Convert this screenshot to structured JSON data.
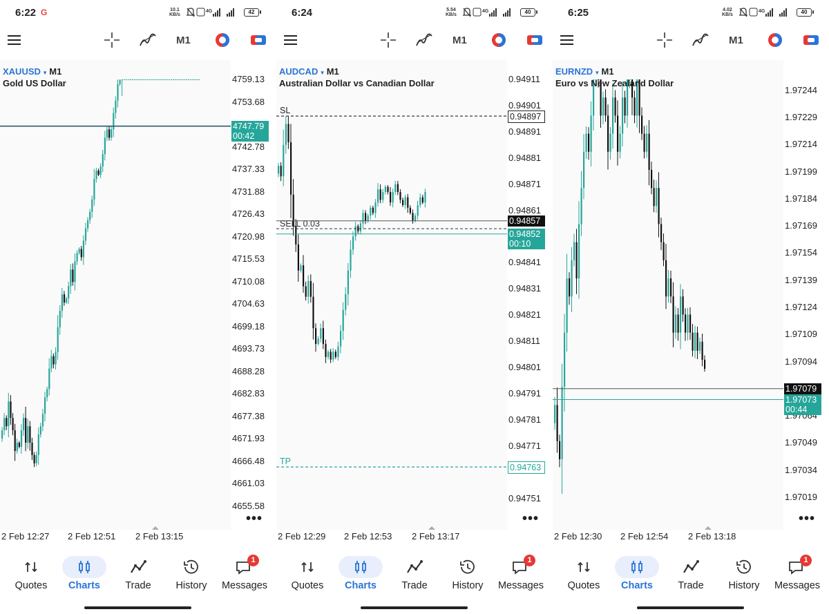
{
  "panels": [
    {
      "status": {
        "time": "6:22",
        "g_logo": "G",
        "speed_top": "10.1",
        "speed_unit": "KB/s",
        "battery": "42"
      },
      "toolbar": {
        "timeframe": "M1"
      },
      "symbol": "XAUUSD",
      "symbol_tf": "M1",
      "description": "Gold US Dollar",
      "price_ticks": [
        "4759.13",
        "4753.68",
        "4742.78",
        "4737.33",
        "4731.88",
        "4726.43",
        "4720.98",
        "4715.53",
        "4710.08",
        "4704.63",
        "4699.18",
        "4693.73",
        "4688.28",
        "4682.83",
        "4677.38",
        "4671.93",
        "4666.48",
        "4661.03",
        "4655.58"
      ],
      "price_min": 4655.58,
      "price_max": 4759.13,
      "bid": {
        "price": "4747.79",
        "timer": "00:42",
        "value": 4747.79
      },
      "x_labels": [
        "2 Feb 12:27",
        "2 Feb 12:51",
        "2 Feb 13:15"
      ],
      "more": "•••",
      "nav_active": "Charts"
    },
    {
      "status": {
        "time": "6:24",
        "speed_top": "5.54",
        "speed_unit": "KB/s",
        "battery": "40"
      },
      "toolbar": {
        "timeframe": "M1"
      },
      "symbol": "AUDCAD",
      "symbol_tf": "M1",
      "description": "Australian Dollar vs Canadian Dollar",
      "price_ticks": [
        "0.94911",
        "0.94901",
        "0.94891",
        "0.94881",
        "0.94871",
        "0.94861",
        "0.94841",
        "0.94831",
        "0.94821",
        "0.94811",
        "0.94801",
        "0.94791",
        "0.94781",
        "0.94771",
        "0.94751"
      ],
      "price_min": 0.94748,
      "price_max": 0.94911,
      "sl": {
        "label": "SL",
        "price": "0.94897",
        "value": 0.94897
      },
      "tp": {
        "label": "TP",
        "price": "0.94763",
        "value": 0.94763
      },
      "sell": {
        "label": "SELL 0.03",
        "value": 0.94854
      },
      "ask": {
        "price": "0.94857",
        "value": 0.94857
      },
      "bid": {
        "price": "0.94852",
        "timer": "00:10",
        "value": 0.94852
      },
      "x_labels": [
        "2 Feb 12:29",
        "2 Feb 12:53",
        "2 Feb 13:17"
      ],
      "more": "•••",
      "nav_active": "Charts"
    },
    {
      "status": {
        "time": "6:25",
        "speed_top": "4.02",
        "speed_unit": "KB/s",
        "battery": "40"
      },
      "toolbar": {
        "timeframe": "M1"
      },
      "symbol": "EURNZD",
      "symbol_tf": "M1",
      "description": "Euro vs New Zealand Dollar",
      "price_ticks": [
        "1.97244",
        "1.97229",
        "1.97214",
        "1.97199",
        "1.97184",
        "1.97169",
        "1.97154",
        "1.97139",
        "1.97124",
        "1.97109",
        "1.97094",
        "1.97064",
        "1.97049",
        "1.97034",
        "1.97019"
      ],
      "price_min": 1.97014,
      "price_max": 1.9725,
      "ask": {
        "price": "1.97079",
        "value": 1.97079
      },
      "bid": {
        "price": "1.97073",
        "timer": "00:44",
        "value": 1.97073
      },
      "x_labels": [
        "2 Feb 12:30",
        "2 Feb 12:54",
        "2 Feb 13:18"
      ],
      "more": "•••",
      "nav_active": "Charts"
    }
  ],
  "nav": {
    "items": [
      "Quotes",
      "Charts",
      "Trade",
      "History",
      "Messages"
    ],
    "messages_badge": "1"
  },
  "colors": {
    "bull": "#26a69a",
    "bear": "#111111",
    "accent": "#2a74d8",
    "sl": "#222222",
    "tp": "#26a69a",
    "badge": "#e53935"
  },
  "icons": {
    "menu": "hamburger-icon",
    "crosshair": "crosshair-icon",
    "indicator": "indicator-icon",
    "order": "one-click-trading-icon",
    "account": "account-icon"
  }
}
